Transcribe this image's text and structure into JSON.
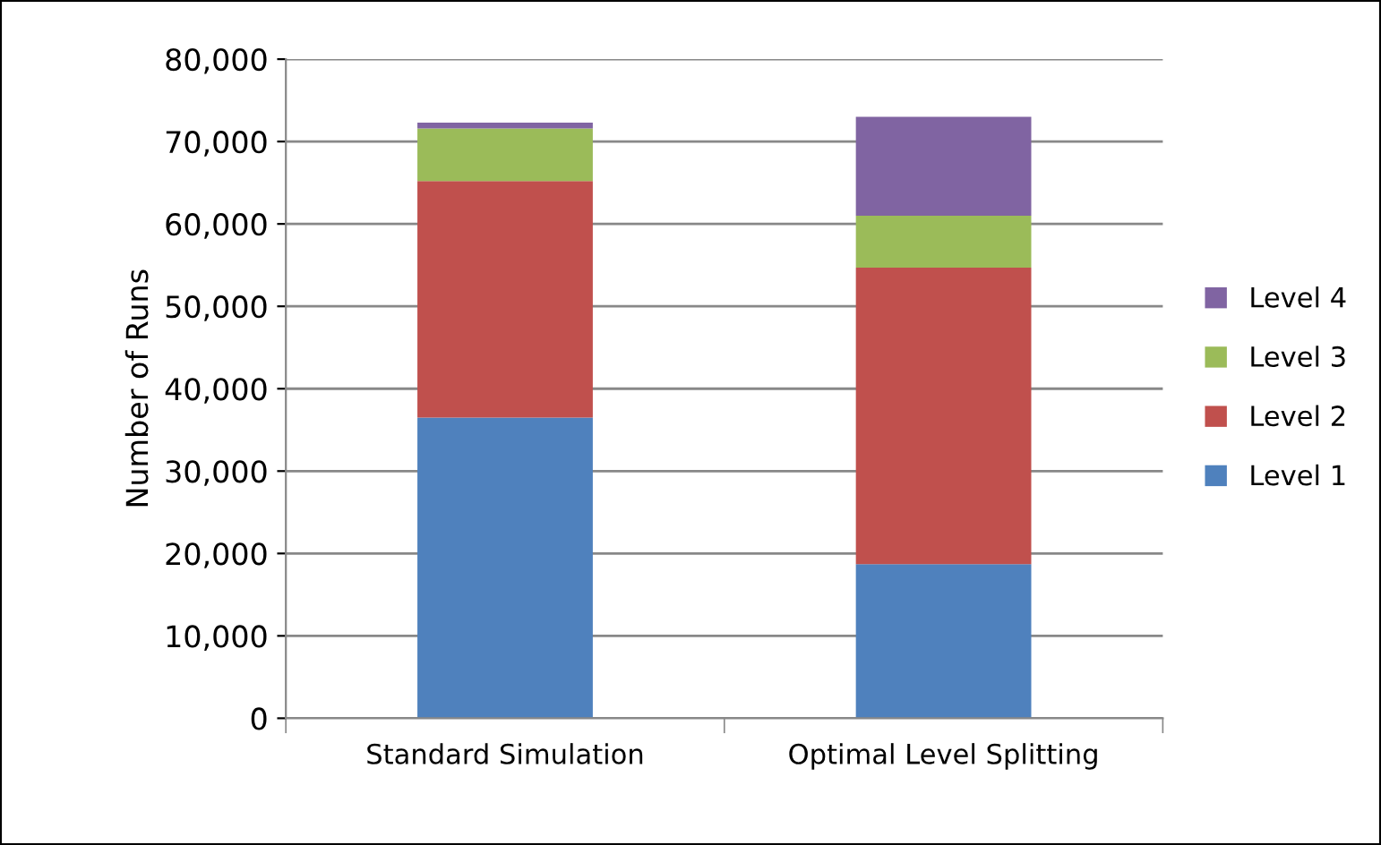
{
  "chart_data": {
    "type": "bar",
    "stacked": true,
    "ylabel": "Number of Runs",
    "categories": [
      "Standard Simulation",
      "Optimal Level Splitting"
    ],
    "series": [
      {
        "name": "Level 1",
        "color": "#4f81bd",
        "values": [
          36500,
          18700
        ]
      },
      {
        "name": "Level 2",
        "color": "#c0504d",
        "values": [
          28700,
          36000
        ]
      },
      {
        "name": "Level 3",
        "color": "#9bbb59",
        "values": [
          6400,
          6300
        ]
      },
      {
        "name": "Level 4",
        "color": "#8064a2",
        "values": [
          700,
          12000
        ]
      }
    ],
    "ylim": [
      0,
      80000
    ],
    "yticks": [
      {
        "value": 0,
        "label": "0"
      },
      {
        "value": 10000,
        "label": "10,000"
      },
      {
        "value": 20000,
        "label": "20,000"
      },
      {
        "value": 30000,
        "label": "30,000"
      },
      {
        "value": 40000,
        "label": "40,000"
      },
      {
        "value": 50000,
        "label": "50,000"
      },
      {
        "value": 60000,
        "label": "60,000"
      },
      {
        "value": 70000,
        "label": "70,000"
      },
      {
        "value": 80000,
        "label": "80,000"
      }
    ],
    "grid": "y",
    "legend": "right"
  }
}
